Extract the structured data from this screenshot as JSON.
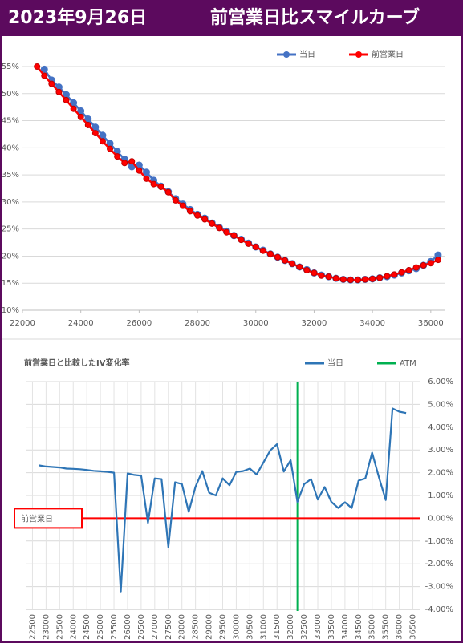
{
  "header": {
    "date": "2023年9月26日",
    "title": "前営業日比スマイルカーブ"
  },
  "chart_data": [
    {
      "type": "line",
      "x": [
        22500,
        22750,
        23000,
        23250,
        23500,
        23750,
        24000,
        24250,
        24500,
        24750,
        25000,
        25250,
        25500,
        25750,
        26000,
        26250,
        26500,
        26750,
        27000,
        27250,
        27500,
        27750,
        28000,
        28250,
        28500,
        28750,
        29000,
        29250,
        29500,
        29750,
        30000,
        30250,
        30500,
        30750,
        31000,
        31250,
        31500,
        31750,
        32000,
        32250,
        32500,
        32750,
        33000,
        33250,
        33500,
        33750,
        34000,
        34250,
        34500,
        34750,
        35000,
        35250,
        35500,
        35750,
        36000,
        36250
      ],
      "series": [
        {
          "name": "当日",
          "color": "#4472c4",
          "values": [
            null,
            54.5,
            52.5,
            51.2,
            49.8,
            48.3,
            46.8,
            45.3,
            43.8,
            42.3,
            40.8,
            39.3,
            37.9,
            36.5,
            36.8,
            35.5,
            34.0,
            32.9,
            31.9,
            30.6,
            29.6,
            28.6,
            27.7,
            27.0,
            26.1,
            25.3,
            24.6,
            23.8,
            23.1,
            22.4,
            21.7,
            21.1,
            20.4,
            19.8,
            19.2,
            18.6,
            18.0,
            17.5,
            16.9,
            16.5,
            16.2,
            15.9,
            15.7,
            15.6,
            15.6,
            15.7,
            15.8,
            16.0,
            16.2,
            16.5,
            16.9,
            17.3,
            17.7,
            18.3,
            19.0,
            20.2
          ]
        },
        {
          "name": "前営業日",
          "color": "#ff0000",
          "values": [
            55.0,
            53.3,
            51.8,
            50.3,
            48.8,
            47.2,
            45.7,
            44.2,
            42.7,
            41.2,
            39.8,
            38.4,
            37.2,
            37.5,
            35.8,
            34.3,
            33.3,
            32.8,
            31.8,
            30.3,
            29.3,
            28.3,
            27.5,
            26.8,
            26.0,
            25.2,
            24.4,
            23.8,
            23.0,
            22.3,
            21.7,
            21.0,
            20.4,
            19.8,
            19.2,
            18.6,
            18.0,
            17.4,
            16.9,
            16.4,
            16.2,
            15.9,
            15.7,
            15.6,
            15.6,
            15.7,
            15.8,
            16.0,
            16.3,
            16.6,
            17.0,
            17.4,
            17.9,
            18.3,
            18.7,
            19.3
          ]
        }
      ],
      "xlim": [
        22000,
        36500
      ],
      "xticks": [
        22000,
        24000,
        26000,
        28000,
        30000,
        32000,
        34000,
        36000
      ],
      "ylim": [
        10,
        55
      ],
      "yticks": [
        {
          "value": 10,
          "label": "10%"
        },
        {
          "value": 15,
          "label": "15%"
        },
        {
          "value": 20,
          "label": "20%"
        },
        {
          "value": 25,
          "label": "25%"
        },
        {
          "value": 30,
          "label": "30%"
        },
        {
          "value": 35,
          "label": "35%"
        },
        {
          "value": 40,
          "label": "40%"
        },
        {
          "value": 45,
          "label": "45%"
        },
        {
          "value": 50,
          "label": "50%"
        },
        {
          "value": 55,
          "label": "55%"
        }
      ],
      "grid": true,
      "markers": true,
      "legend": "top-right"
    },
    {
      "type": "line",
      "title": "前営業日と比較したIV変化率",
      "x": [
        22750,
        23000,
        23250,
        23500,
        23750,
        24000,
        24250,
        24500,
        24750,
        25000,
        25250,
        25500,
        25750,
        26000,
        26250,
        26500,
        26750,
        27000,
        27250,
        27500,
        27750,
        28000,
        28250,
        28500,
        28750,
        29000,
        29250,
        29500,
        29750,
        30000,
        30250,
        30500,
        30750,
        31000,
        31250,
        31500,
        31750,
        32000,
        32250,
        32500,
        32750,
        33000,
        33250,
        33500,
        33750,
        34000,
        34250,
        34500,
        34750,
        35000,
        35250,
        35500,
        35750,
        36000,
        36250
      ],
      "series": [
        {
          "name": "当日",
          "color": "#2e75b6",
          "values": [
            2.32,
            2.27,
            2.25,
            2.23,
            2.18,
            2.17,
            2.15,
            2.12,
            2.08,
            2.06,
            2.04,
            2.0,
            -3.25,
            1.97,
            1.9,
            1.87,
            -0.2,
            1.75,
            1.72,
            -1.27,
            1.58,
            1.5,
            0.28,
            1.38,
            2.07,
            1.12,
            1.0,
            1.75,
            1.45,
            2.03,
            2.07,
            2.18,
            1.92,
            2.45,
            2.98,
            3.25,
            2.05,
            2.55,
            0.72,
            1.5,
            1.72,
            0.82,
            1.37,
            0.72,
            0.45,
            0.7,
            0.45,
            1.65,
            1.75,
            2.88,
            1.8,
            0.8,
            4.82,
            4.68,
            4.62
          ]
        }
      ],
      "reference_lines": [
        {
          "name": "ATM",
          "x": 32250,
          "color": "#00b050"
        },
        {
          "name": "前営業日",
          "y": 0,
          "color": "#ff0000"
        }
      ],
      "xlim": [
        22250,
        36750
      ],
      "xticks": [
        22500,
        23000,
        23500,
        24000,
        24500,
        25000,
        25500,
        26000,
        26500,
        27000,
        27500,
        28000,
        28500,
        29000,
        29500,
        30000,
        30500,
        31000,
        31500,
        32000,
        32500,
        33000,
        33500,
        34000,
        34500,
        35000,
        35500,
        36000,
        36500
      ],
      "ylim": [
        -4,
        6
      ],
      "yticks": [
        {
          "value": -4,
          "label": "-4.00%"
        },
        {
          "value": -3,
          "label": "-3.00%"
        },
        {
          "value": -2,
          "label": "-2.00%"
        },
        {
          "value": -1,
          "label": "-1.00%"
        },
        {
          "value": 0,
          "label": "0.00%"
        },
        {
          "value": 1,
          "label": "1.00%"
        },
        {
          "value": 2,
          "label": "2.00%"
        },
        {
          "value": 3,
          "label": "3.00%"
        },
        {
          "value": 4,
          "label": "4.00%"
        },
        {
          "value": 5,
          "label": "5.00%"
        },
        {
          "value": 6,
          "label": "6.00%"
        }
      ],
      "y_axis_side": "right",
      "grid": true,
      "markers": false,
      "legend": "top-right"
    }
  ]
}
